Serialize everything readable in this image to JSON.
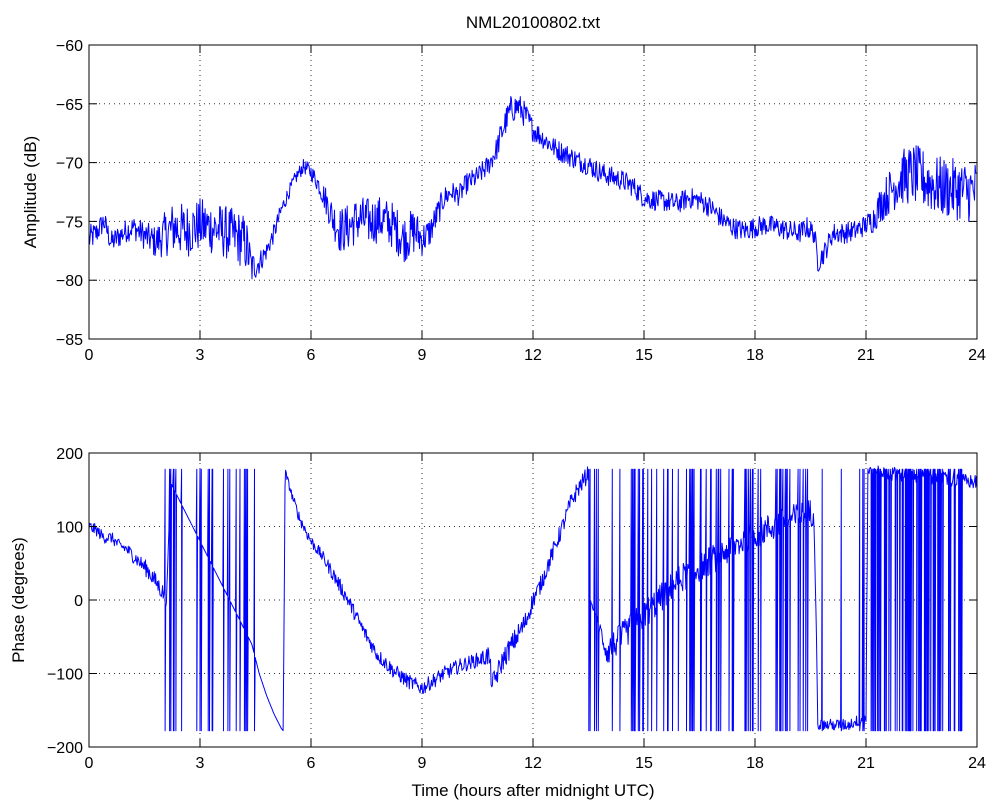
{
  "chart_data": [
    {
      "type": "line",
      "title": "NML20100802.txt",
      "xlabel": "",
      "ylabel": "Amplitude (dB)",
      "xlim": [
        0,
        24
      ],
      "ylim": [
        -85,
        -60
      ],
      "xticks": [
        0,
        3,
        6,
        9,
        12,
        15,
        18,
        21,
        24
      ],
      "xtick_labels": [
        "0",
        "3",
        "6",
        "9",
        "12",
        "15",
        "18",
        "21",
        "24"
      ],
      "yticks": [
        -60,
        -65,
        -70,
        -75,
        -80,
        -85
      ],
      "ytick_labels": [
        "−60",
        "−65",
        "−70",
        "−75",
        "−80",
        "−85"
      ],
      "grid": true,
      "series": [
        {
          "color": "#0000ff",
          "x": [
            0,
            0.2,
            0.4,
            0.6,
            0.8,
            1.0,
            1.2,
            1.5,
            1.8,
            2.0,
            2.3,
            2.6,
            3.0,
            3.3,
            3.6,
            3.9,
            4.1,
            4.25,
            4.4,
            4.6,
            4.8,
            5.0,
            5.2,
            5.4,
            5.6,
            5.8,
            6.0,
            6.2,
            6.4,
            6.6,
            6.8,
            7.0,
            7.3,
            7.6,
            7.9,
            8.2,
            8.5,
            8.8,
            9.0,
            9.2,
            9.4,
            9.6,
            9.8,
            10.0,
            10.2,
            10.5,
            10.8,
            11.0,
            11.2,
            11.4,
            11.6,
            11.8,
            12.0,
            12.3,
            12.6,
            12.9,
            13.2,
            13.5,
            13.8,
            14.1,
            14.4,
            14.7,
            15.0,
            15.3,
            15.6,
            15.9,
            16.2,
            16.5,
            16.8,
            17.1,
            17.4,
            17.7,
            18.0,
            18.3,
            18.6,
            18.9,
            19.2,
            19.4,
            19.6,
            19.7,
            19.9,
            20.1,
            20.4,
            20.7,
            21.0,
            21.2,
            21.4,
            21.7,
            22.0,
            22.3,
            22.6,
            22.9,
            23.2,
            23.5,
            23.8,
            24.0
          ],
          "y": [
            -76.5,
            -76,
            -75,
            -76.8,
            -76.3,
            -75.8,
            -75.5,
            -76.2,
            -76.8,
            -76.2,
            -75.5,
            -75.8,
            -75.3,
            -75.5,
            -75.8,
            -76.2,
            -76.5,
            -77,
            -79,
            -78.5,
            -77.5,
            -76,
            -74,
            -72.5,
            -71.2,
            -70.3,
            -70.8,
            -71.8,
            -73.2,
            -74.8,
            -75.8,
            -75.5,
            -74.8,
            -75,
            -74.8,
            -75.3,
            -76.5,
            -75.8,
            -76.5,
            -76,
            -74.5,
            -73,
            -72.5,
            -72.8,
            -71.8,
            -71.2,
            -70.2,
            -69,
            -67,
            -65.5,
            -65.2,
            -66,
            -67.2,
            -68,
            -68.8,
            -69.3,
            -69.8,
            -70.2,
            -70.8,
            -71.2,
            -71.5,
            -72,
            -73,
            -73.2,
            -73.3,
            -73.5,
            -73,
            -73.2,
            -73.8,
            -74.8,
            -75.5,
            -75.8,
            -75.5,
            -75.3,
            -75.5,
            -75.8,
            -76,
            -75.5,
            -76,
            -78.5,
            -77.5,
            -76,
            -76,
            -75.8,
            -75.3,
            -74.8,
            -73.5,
            -72.2,
            -71.2,
            -71,
            -71.5,
            -72,
            -72.2,
            -72.3,
            -72.5,
            -72.3
          ],
          "noise": [
            1.2,
            1,
            1,
            1,
            1,
            1,
            1,
            1.2,
            1.4,
            1.8,
            2.3,
            2.3,
            2.3,
            2.3,
            2.3,
            2.3,
            2.4,
            2.4,
            1.5,
            1,
            0.8,
            0.8,
            0.7,
            0.6,
            0.6,
            0.6,
            0.7,
            0.8,
            1.2,
            1.6,
            2,
            2,
            2,
            2,
            2,
            2,
            2,
            2,
            1.5,
            1.3,
            1.2,
            1,
            0.9,
            0.9,
            0.9,
            0.9,
            0.9,
            1,
            1.2,
            1.2,
            1.2,
            1.1,
            1,
            0.9,
            0.9,
            0.9,
            0.9,
            0.9,
            0.9,
            0.9,
            0.9,
            0.9,
            0.9,
            0.9,
            0.9,
            0.9,
            0.9,
            0.9,
            0.9,
            0.9,
            0.9,
            0.9,
            0.9,
            0.9,
            0.9,
            0.9,
            0.9,
            0.9,
            0.9,
            0.9,
            0.9,
            0.9,
            0.9,
            0.9,
            0.9,
            1.2,
            1.6,
            2,
            2.4,
            2.6,
            2.6,
            2.6,
            2.6,
            2.6,
            2.6,
            2.6
          ]
        }
      ]
    },
    {
      "type": "line",
      "title": "",
      "xlabel": "Time (hours after midnight UTC)",
      "ylabel": "Phase (degrees)",
      "xlim": [
        0,
        24
      ],
      "ylim": [
        -200,
        200
      ],
      "xticks": [
        0,
        3,
        6,
        9,
        12,
        15,
        18,
        21,
        24
      ],
      "xtick_labels": [
        "0",
        "3",
        "6",
        "9",
        "12",
        "15",
        "18",
        "21",
        "24"
      ],
      "yticks": [
        200,
        100,
        0,
        -100,
        -200
      ],
      "ytick_labels": [
        "200",
        "100",
        "0",
        "−100",
        "−200"
      ],
      "grid": true,
      "series": [
        {
          "color": "#0000ff",
          "x": [
            0,
            0.2,
            0.4,
            0.6,
            0.8,
            1.0,
            1.2,
            1.4,
            1.6,
            1.8,
            2.0,
            2.05,
            2.1,
            2.2,
            2.4,
            2.6,
            2.8,
            3.0,
            3.2,
            3.4,
            3.6,
            3.8,
            4.0,
            4.2,
            4.4,
            4.6,
            4.8,
            5.0,
            5.2,
            5.25,
            5.3,
            5.5,
            5.7,
            6.0,
            6.3,
            6.6,
            7.0,
            7.4,
            7.8,
            8.2,
            8.6,
            9.0,
            9.3,
            9.6,
            10.0,
            10.3,
            10.6,
            10.8,
            10.9,
            11.0,
            11.2,
            11.5,
            11.8,
            12.0,
            12.2,
            12.5,
            12.8,
            13.0,
            13.2,
            13.4,
            13.5,
            13.55,
            14.0,
            15.0,
            16.0,
            17.0,
            18.0,
            19.0,
            19.6,
            19.7,
            20.0,
            20.5,
            21.0,
            21.05,
            22.0,
            23.0,
            24.0
          ],
          "y": [
            100,
            95,
            85,
            85,
            75,
            70,
            60,
            50,
            40,
            25,
            10,
            5,
            0,
            160,
            140,
            120,
            100,
            80,
            60,
            40,
            20,
            0,
            -20,
            -40,
            -60,
            -100,
            -130,
            -155,
            -175,
            -178,
            175,
            140,
            110,
            80,
            60,
            35,
            0,
            -40,
            -75,
            -95,
            -110,
            -120,
            -110,
            -100,
            -90,
            -85,
            -80,
            -75,
            -115,
            -105,
            -80,
            -55,
            -30,
            0,
            20,
            60,
            100,
            130,
            150,
            165,
            175,
            0,
            -70,
            -20,
            30,
            60,
            90,
            110,
            120,
            -170,
            -170,
            -170,
            -160,
            175,
            170,
            165,
            160
          ],
          "noise": [
            8,
            8,
            8,
            8,
            8,
            8,
            10,
            10,
            12,
            12,
            12,
            12,
            12,
            0,
            0,
            0,
            0,
            0,
            0,
            0,
            0,
            0,
            0,
            0,
            0,
            0,
            0,
            0,
            0,
            0,
            5,
            6,
            8,
            8,
            8,
            10,
            10,
            10,
            10,
            10,
            10,
            10,
            10,
            10,
            10,
            10,
            10,
            15,
            15,
            15,
            15,
            15,
            15,
            12,
            12,
            12,
            12,
            12,
            12,
            12,
            12,
            0,
            20,
            20,
            20,
            20,
            20,
            20,
            20,
            8,
            8,
            8,
            8,
            10,
            10,
            10,
            10
          ],
          "wrap_segments": [
            {
              "x0": 2.05,
              "x1": 4.5,
              "count": 22
            },
            {
              "x0": 13.5,
              "x1": 19.6,
              "count": 70
            },
            {
              "x0": 19.6,
              "x1": 21.0,
              "count": 4
            },
            {
              "x0": 21.0,
              "x1": 23.6,
              "count": 60
            }
          ]
        }
      ]
    }
  ]
}
